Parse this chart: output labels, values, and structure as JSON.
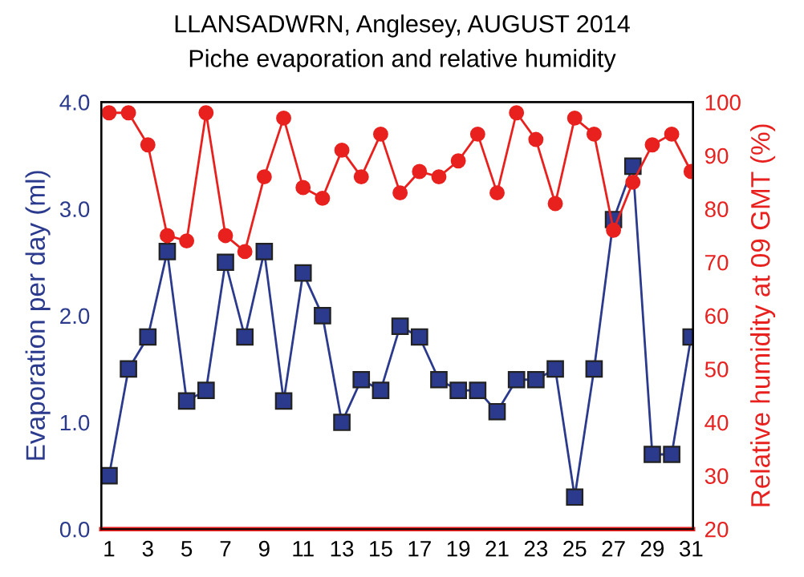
{
  "chart_data": {
    "type": "line",
    "title": "LLANSADWRN, Anglesey, AUGUST 2014",
    "subtitle": "Piche evaporation and relative humidity",
    "xlabel": null,
    "ylabel": "Evaporation per day (ml)",
    "y2label": "Relative humidity at 09 GMT (%)",
    "x": [
      1,
      2,
      3,
      4,
      5,
      6,
      7,
      8,
      9,
      10,
      11,
      12,
      13,
      14,
      15,
      16,
      17,
      18,
      19,
      20,
      21,
      22,
      23,
      24,
      25,
      26,
      27,
      28,
      29,
      30,
      31
    ],
    "series": [
      {
        "name": null,
        "color": "#2b3a8c",
        "marker": "square",
        "values": [
          0.5,
          1.5,
          1.8,
          2.6,
          1.2,
          1.3,
          2.5,
          1.8,
          2.6,
          1.2,
          2.4,
          2.0,
          1.0,
          1.4,
          1.3,
          1.9,
          1.8,
          1.4,
          1.3,
          1.3,
          1.1,
          1.4,
          1.4,
          1.5,
          0.3,
          1.5,
          2.9,
          3.4,
          0.7,
          0.7,
          1.8
        ]
      },
      {
        "name": null,
        "color": "#e8211f",
        "marker": "circle",
        "axis": "y2",
        "values": [
          98,
          98,
          92,
          75,
          74,
          98,
          75,
          72,
          86,
          97,
          84,
          82,
          91,
          86,
          94,
          83,
          87,
          86,
          89,
          94,
          83,
          98,
          93,
          81,
          97,
          94,
          76,
          85,
          92,
          94,
          87
        ]
      }
    ],
    "xlim": [
      0.6,
      31.1
    ],
    "xticks": [
      1,
      3,
      5,
      7,
      9,
      11,
      13,
      15,
      17,
      19,
      21,
      23,
      25,
      27,
      29,
      31
    ],
    "ylim": [
      0,
      4
    ],
    "yticks": [
      {
        "value": 0,
        "label": "0.0"
      },
      {
        "value": 1,
        "label": "1.0"
      },
      {
        "value": 2,
        "label": "2.0"
      },
      {
        "value": 3,
        "label": "3.0"
      },
      {
        "value": 4,
        "label": "4.0"
      }
    ],
    "y2lim": [
      20,
      100
    ],
    "y2ticks": [
      20,
      30,
      40,
      50,
      60,
      70,
      80,
      90,
      100
    ],
    "grid": false,
    "legend": false,
    "line_style": "solid"
  }
}
